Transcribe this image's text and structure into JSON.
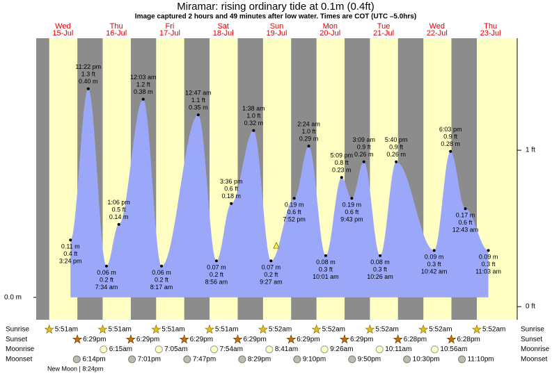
{
  "chart_data": {
    "type": "tide",
    "title": "Miramar: rising  ordinary tide at 0.1m (0.4ft)",
    "subtitle": "Image captured 2 hours and 49 minutes after low water. Times are COT (UTC –5.0hrs)",
    "days": [
      {
        "name": "Wed",
        "date": "15-Jul"
      },
      {
        "name": "Thu",
        "date": "16-Jul"
      },
      {
        "name": "Fri",
        "date": "17-Jul"
      },
      {
        "name": "Sat",
        "date": "18-Jul"
      },
      {
        "name": "Sun",
        "date": "19-Jul"
      },
      {
        "name": "Mon",
        "date": "20-Jul"
      },
      {
        "name": "Tue",
        "date": "21-Jul"
      },
      {
        "name": "Wed",
        "date": "22-Jul"
      },
      {
        "name": "Thu",
        "date": "23-Jul"
      }
    ],
    "extremes": [
      {
        "time": "3:24 pm",
        "ft_label": "0.4 ft",
        "value": 0.11,
        "value_label": "0.11 m",
        "tide": "low"
      },
      {
        "time": "11:22 pm",
        "ft_label": "1.3 ft",
        "value": 0.4,
        "value_label": "0.40 m",
        "tide": "high"
      },
      {
        "time": "7:34 am",
        "ft_label": "0.2 ft",
        "value": 0.06,
        "value_label": "0.06 m",
        "tide": "low"
      },
      {
        "time": "1:06 pm",
        "ft_label": "0.5 ft",
        "value": 0.14,
        "value_label": "0.14 m",
        "tide": "high"
      },
      {
        "time": "12:03 am",
        "ft_label": "1.2 ft",
        "value": 0.38,
        "value_label": "0.38 m",
        "tide": "high"
      },
      {
        "time": "8:17 am",
        "ft_label": "0.2 ft",
        "value": 0.06,
        "value_label": "0.06 m",
        "tide": "low"
      },
      {
        "time": "12:47 am",
        "ft_label": "1.1 ft",
        "value": 0.35,
        "value_label": "0.35 m",
        "tide": "high"
      },
      {
        "time": "8:56 am",
        "ft_label": "0.2 ft",
        "value": 0.07,
        "value_label": "0.07 m",
        "tide": "low"
      },
      {
        "time": "3:36 pm",
        "ft_label": "0.6 ft",
        "value": 0.18,
        "value_label": "0.18 m",
        "tide": "high"
      },
      {
        "time": "1:38 am",
        "ft_label": "1.0 ft",
        "value": 0.32,
        "value_label": "0.32 m",
        "tide": "high"
      },
      {
        "time": "9:27 am",
        "ft_label": "0.2 ft",
        "value": 0.07,
        "value_label": "0.07 m",
        "tide": "low"
      },
      {
        "time": "7:52 pm",
        "ft_label": "0.6 ft",
        "value": 0.19,
        "value_label": "0.19 m",
        "tide": "low"
      },
      {
        "time": "2:24 am",
        "ft_label": "1.0 ft",
        "value": 0.29,
        "value_label": "0.29 m",
        "tide": "high"
      },
      {
        "time": "10:01 am",
        "ft_label": "0.3 ft",
        "value": 0.08,
        "value_label": "0.08 m",
        "tide": "low"
      },
      {
        "time": "5:09 pm",
        "ft_label": "0.8 ft",
        "value": 0.23,
        "value_label": "0.23 m",
        "tide": "high"
      },
      {
        "time": "9:43 pm",
        "ft_label": "0.6 ft",
        "value": 0.19,
        "value_label": "0.19 m",
        "tide": "low"
      },
      {
        "time": "3:09 am",
        "ft_label": "0.9 ft",
        "value": 0.26,
        "value_label": "0.26 m",
        "tide": "high"
      },
      {
        "time": "10:26 am",
        "ft_label": "0.3 ft",
        "value": 0.08,
        "value_label": "0.08 m",
        "tide": "low"
      },
      {
        "time": "5:40 pm",
        "ft_label": "0.9 ft",
        "value": 0.26,
        "value_label": "0.26 m",
        "tide": "high"
      },
      {
        "time": "10:42 am",
        "ft_label": "0.3 ft",
        "value": 0.09,
        "value_label": "0.09 m",
        "tide": "low"
      },
      {
        "time": "6:03 pm",
        "ft_label": "0.9 ft",
        "value": 0.28,
        "value_label": "0.28 m",
        "tide": "high"
      },
      {
        "time": "12:43 am",
        "ft_label": "0.6 ft",
        "value": 0.17,
        "value_label": "0.17 m",
        "tide": "low"
      },
      {
        "time": "11:03 am",
        "ft_label": "0.3 ft",
        "value": 0.09,
        "value_label": "0.09 m",
        "tide": "low"
      }
    ],
    "color": "#9ba8fa",
    "ylim": [
      -0.043,
      0.497
    ],
    "yticks": [
      {
        "value": 0,
        "label": "0.0 m"
      }
    ],
    "y2lim": [
      -0.084,
      1.716
    ],
    "y2ticks": [
      {
        "value": 0,
        "label": "0 ft"
      },
      {
        "value": 1,
        "label": "1 ft"
      }
    ],
    "almanac": [
      {
        "name": "Sunrise",
        "times": [
          "5:51am",
          "5:51am",
          "5:51am",
          "5:51am",
          "5:52am",
          "5:52am",
          "5:52am",
          "5:52am",
          "5:52am"
        ]
      },
      {
        "name": "Sunset",
        "times": [
          "6:29pm",
          "6:29pm",
          "6:29pm",
          "6:29pm",
          "6:29pm",
          "6:29pm",
          "6:28pm",
          "6:28pm",
          null
        ]
      },
      {
        "name": "Moonrise",
        "times": [
          null,
          "6:15am",
          "7:05am",
          "7:54am",
          "8:41am",
          "9:26am",
          "10:11am",
          "10:56am",
          null
        ]
      },
      {
        "name": "Moonset",
        "times": [
          "6:14pm",
          "7:01pm",
          "7:47pm",
          "8:29pm",
          "9:10pm",
          "9:50pm",
          "10:30pm",
          "11:10pm",
          null
        ]
      }
    ],
    "moon_phase": "New Moon | 8:24pm"
  }
}
